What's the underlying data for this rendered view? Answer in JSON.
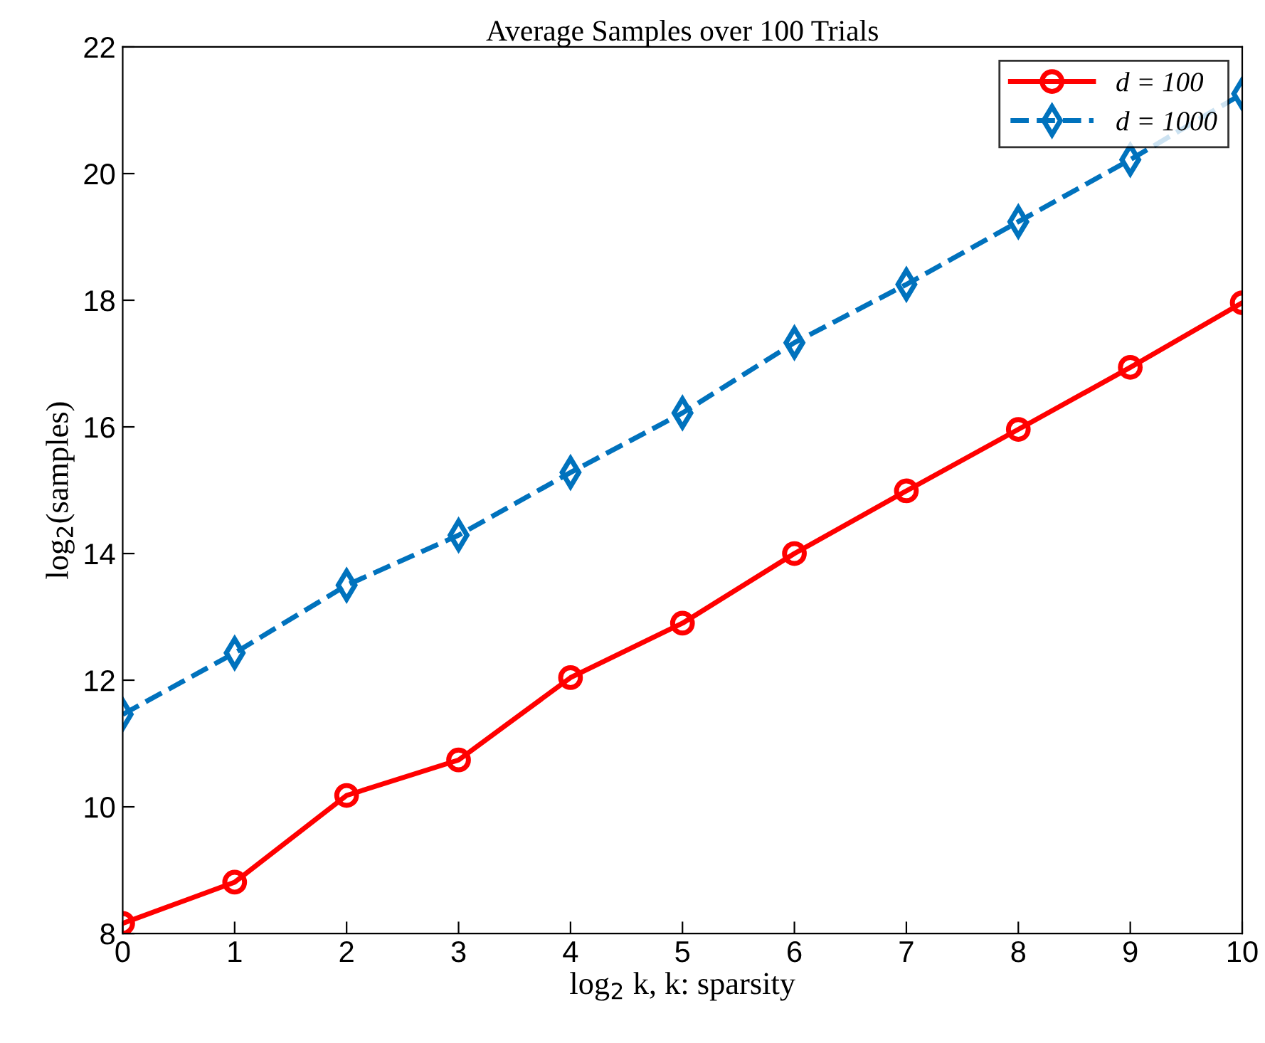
{
  "chart_data": {
    "type": "line",
    "title": "Average Samples over 100 Trials",
    "xlabel": "log$_{2}$ k, k: sparsity",
    "ylabel": "log$_{2}$(samples)",
    "x": [
      0,
      1,
      2,
      3,
      4,
      5,
      6,
      7,
      8,
      9,
      10
    ],
    "series": [
      {
        "name": "d = 100",
        "color": "#ff0000",
        "marker": "circle",
        "line_style": "solid",
        "values": [
          8.16,
          8.81,
          10.18,
          10.74,
          12.04,
          12.9,
          14.0,
          14.99,
          15.96,
          16.94,
          17.96
        ]
      },
      {
        "name": "d = 1000",
        "color": "#0072bd",
        "marker": "diamond",
        "line_style": "dashed",
        "values": [
          11.46,
          12.43,
          13.5,
          14.29,
          15.28,
          16.22,
          17.33,
          18.25,
          19.24,
          20.22,
          21.26
        ]
      }
    ],
    "xlim": [
      0,
      10
    ],
    "ylim": [
      8,
      22
    ],
    "xticks": [
      0,
      1,
      2,
      3,
      4,
      5,
      6,
      7,
      8,
      9,
      10
    ],
    "yticks": [
      8,
      10,
      12,
      14,
      16,
      18,
      20,
      22
    ],
    "grid": false,
    "legend": "top right"
  }
}
